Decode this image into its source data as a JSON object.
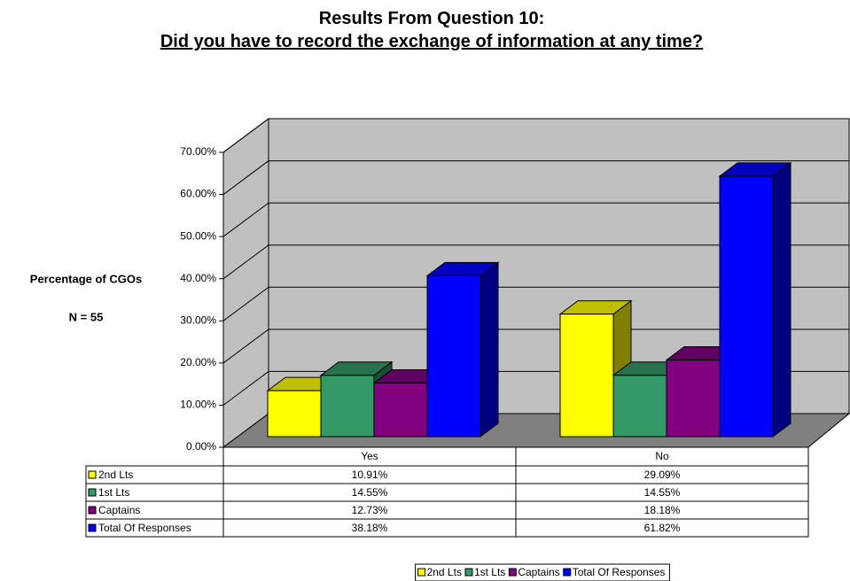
{
  "chart_data": {
    "type": "bar3d",
    "title": "Results From Question 10:",
    "subtitle": "Did you have to record the exchange of information at any time?",
    "y_label": "Percentage of CGOs",
    "annotation": "N = 55",
    "categories": [
      "Yes",
      "No"
    ],
    "series": [
      {
        "name": "2nd Lts",
        "color": "#ffff00",
        "values": [
          10.91,
          29.09
        ],
        "value_labels": [
          "10.91%",
          "29.09%"
        ]
      },
      {
        "name": "1st Lts",
        "color": "#339966",
        "values": [
          14.55,
          14.55
        ],
        "value_labels": [
          "14.55%",
          "14.55%"
        ]
      },
      {
        "name": "Captains",
        "color": "#800080",
        "values": [
          12.73,
          18.18
        ],
        "value_labels": [
          "12.73%",
          "18.18%"
        ]
      },
      {
        "name": "Total Of Responses",
        "color": "#0000ff",
        "values": [
          38.18,
          61.82
        ],
        "value_labels": [
          "38.18%",
          "61.82%"
        ]
      }
    ],
    "ylim": [
      0,
      70
    ],
    "yticks": [
      {
        "value": 0,
        "label": "0.00%"
      },
      {
        "value": 10,
        "label": "10.00%"
      },
      {
        "value": 20,
        "label": "20.00%"
      },
      {
        "value": 30,
        "label": "30.00%"
      },
      {
        "value": 40,
        "label": "40.00%"
      },
      {
        "value": 50,
        "label": "50.00%"
      },
      {
        "value": 60,
        "label": "60.00%"
      },
      {
        "value": 70,
        "label": "70.00%"
      }
    ],
    "grid": true,
    "legend": "bottom",
    "data_table": true
  }
}
